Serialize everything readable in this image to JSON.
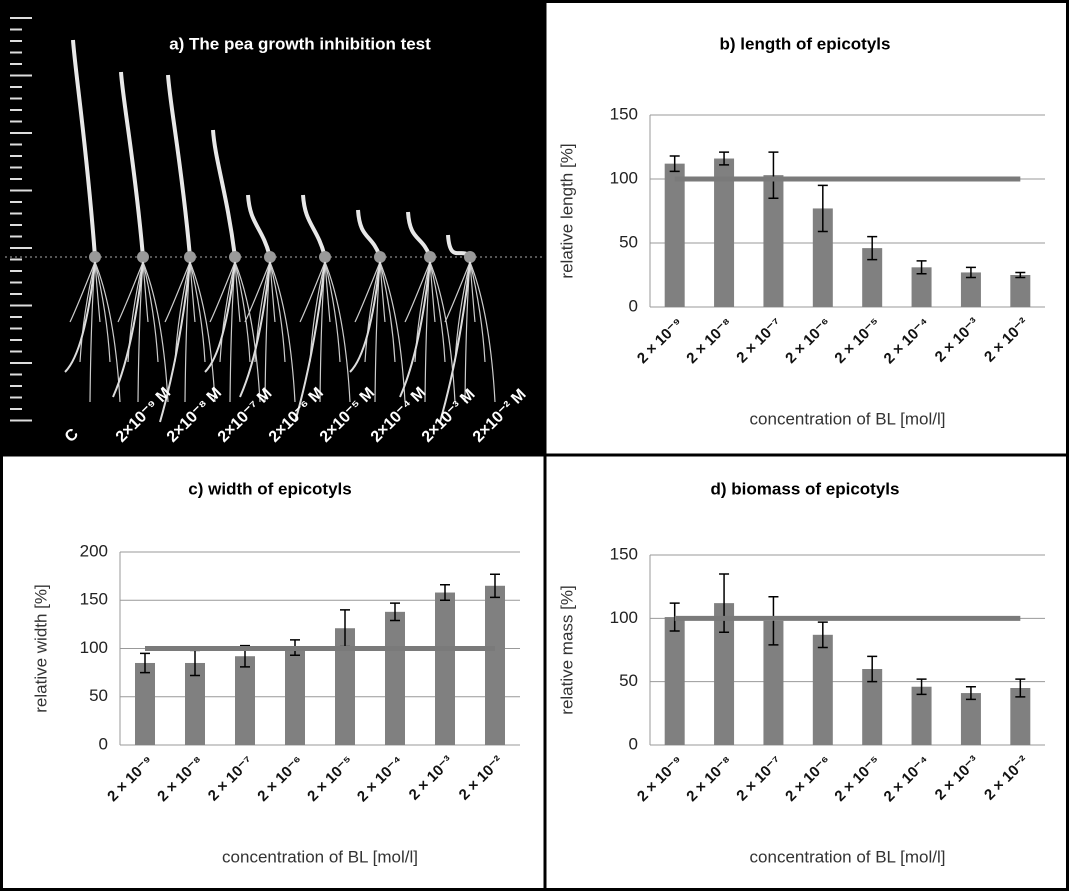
{
  "photo_panel": {
    "title": "a) The pea growth inhibition test",
    "labels": [
      "C",
      "2×10⁻⁹ M",
      "2×10⁻⁸ M",
      "2×10⁻⁷ M",
      "2×10⁻⁶ M",
      "2×10⁻⁵ M",
      "2×10⁻⁴ M",
      "2×10⁻³ M",
      "2×10⁻² M"
    ]
  },
  "chart_data": [
    {
      "type": "bar",
      "title": "b) length of epicotyls",
      "y_label": "relative length  [%]",
      "x_label": "concentration of BL   [mol/l]",
      "categories": [
        "2 × 10⁻⁹",
        "2 × 10⁻⁸",
        "2 × 10⁻⁷",
        "2 × 10⁻⁶",
        "2 × 10⁻⁵",
        "2 × 10⁻⁴",
        "2 × 10⁻³",
        "2 × 10⁻²"
      ],
      "values": [
        112,
        116,
        103,
        77,
        46,
        31,
        27,
        25
      ],
      "errors": [
        6,
        5,
        18,
        18,
        9,
        5,
        4,
        2
      ],
      "reference": 100,
      "color": "#808080",
      "ylim": [
        0,
        150
      ],
      "yticks": [
        0,
        50,
        100,
        150
      ],
      "grid": true
    },
    {
      "type": "bar",
      "title": "c) width of epicotyls",
      "y_label": "relative width  [%]",
      "x_label": "concentration of BL [mol/l]",
      "categories": [
        "2 × 10⁻⁹",
        "2 × 10⁻⁸",
        "2 × 10⁻⁷",
        "2 × 10⁻⁶",
        "2 × 10⁻⁵",
        "2 × 10⁻⁴",
        "2 × 10⁻³",
        "2 × 10⁻²"
      ],
      "values": [
        85,
        85,
        92,
        101,
        121,
        138,
        158,
        165
      ],
      "errors": [
        10,
        13,
        11,
        8,
        19,
        9,
        8,
        12
      ],
      "reference": 100,
      "color": "#808080",
      "ylim": [
        0,
        200
      ],
      "yticks": [
        0,
        50,
        100,
        150,
        200
      ],
      "grid": true
    },
    {
      "type": "bar",
      "title": "d) biomass of epicotyls",
      "y_label": "relative mass  [%]",
      "x_label": "concentration of BL [mol/l]",
      "categories": [
        "2 × 10⁻⁹",
        "2 × 10⁻⁸",
        "2 × 10⁻⁷",
        "2 × 10⁻⁶",
        "2 × 10⁻⁵",
        "2 × 10⁻⁴",
        "2 × 10⁻³",
        "2 × 10⁻²"
      ],
      "values": [
        101,
        112,
        98,
        87,
        60,
        46,
        41,
        45
      ],
      "errors": [
        11,
        23,
        19,
        10,
        10,
        6,
        5,
        7
      ],
      "reference": 100,
      "color": "#808080",
      "ylim": [
        0,
        150
      ],
      "yticks": [
        0,
        50,
        100,
        150
      ],
      "grid": true
    }
  ]
}
